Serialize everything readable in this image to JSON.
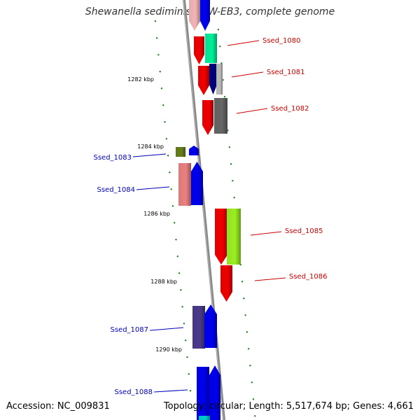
{
  "header": {
    "title": "Shewanella sediminis HAW-EB3, complete genome"
  },
  "footer": {
    "accession": "Accession: NC_009831",
    "topology": "Topology: circular; Length: 5,517,674 bp; Genes: 4,661"
  },
  "colors": {
    "forward_label": "#cc0000",
    "reverse_label": "#0000bb",
    "tick": "#1a7a1a",
    "backbone": "#888888"
  },
  "scale_labels": [
    "1282 kbp",
    "1284 kbp",
    "1286 kbp",
    "1288 kbp",
    "1290 kbp"
  ],
  "genes": [
    {
      "label": "Ssed_1080",
      "strand": "forward"
    },
    {
      "label": "Ssed_1081",
      "strand": "forward"
    },
    {
      "label": "Ssed_1082",
      "strand": "forward"
    },
    {
      "label": "Ssed_1083",
      "strand": "reverse"
    },
    {
      "label": "Ssed_1084",
      "strand": "reverse"
    },
    {
      "label": "Ssed_1085",
      "strand": "forward"
    },
    {
      "label": "Ssed_1086",
      "strand": "forward"
    },
    {
      "label": "Ssed_1087",
      "strand": "reverse"
    },
    {
      "label": "Ssed_1088",
      "strand": "reverse"
    }
  ]
}
